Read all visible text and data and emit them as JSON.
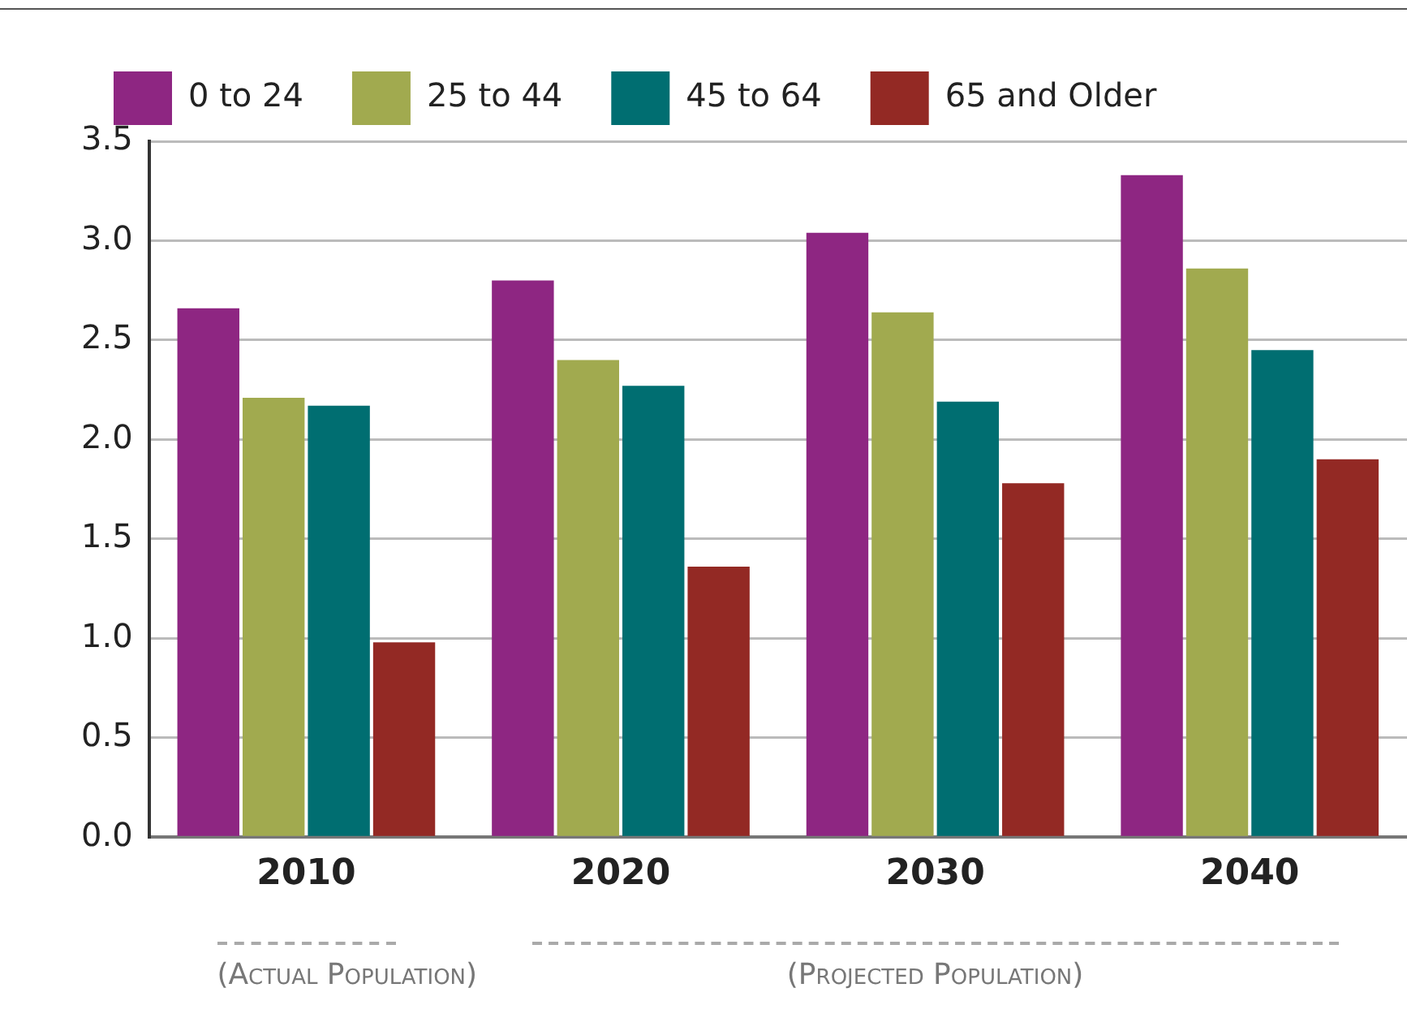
{
  "chart_data": {
    "type": "bar",
    "categories": [
      "2010",
      "2020",
      "2030",
      "2040"
    ],
    "series": [
      {
        "name": "0 to 24",
        "color": "#8e2682",
        "values": [
          2.66,
          2.8,
          3.04,
          3.33
        ]
      },
      {
        "name": "25 to 44",
        "color": "#a1aa4f",
        "values": [
          2.21,
          2.4,
          2.64,
          2.86
        ]
      },
      {
        "name": "45 to 64",
        "color": "#006e71",
        "values": [
          2.17,
          2.27,
          2.19,
          2.45
        ]
      },
      {
        "name": "65 and Older",
        "color": "#932924",
        "values": [
          0.98,
          1.36,
          1.78,
          1.9
        ]
      }
    ],
    "ylim": [
      0,
      3.5
    ],
    "yticks": [
      {
        "value": 0,
        "label": "0.0"
      },
      {
        "value": 0.5,
        "label": "0.5"
      },
      {
        "value": 1,
        "label": "1.0"
      },
      {
        "value": 1.5,
        "label": "1.5"
      },
      {
        "value": 2,
        "label": "2.0"
      },
      {
        "value": 2.5,
        "label": "2.5"
      },
      {
        "value": 3,
        "label": "3.0"
      },
      {
        "value": 3.5,
        "label": "3.5"
      }
    ],
    "grid": "y",
    "legend": "top",
    "annotations": [
      "(Actual Population)",
      "(Projected Population)"
    ]
  }
}
